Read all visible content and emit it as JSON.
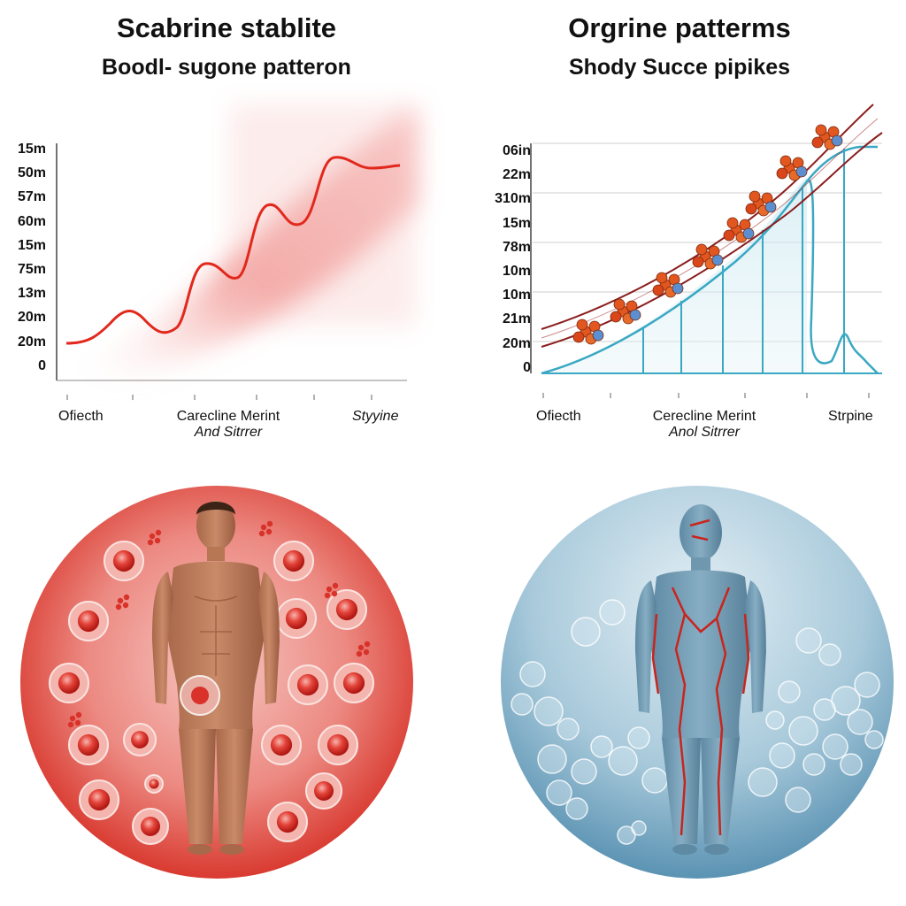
{
  "left_panel": {
    "title": "Scabrine stablite",
    "subtitle": "Boodl- sugone patteron",
    "y_ticks": [
      "15m",
      "50m",
      "57m",
      "60m",
      "15m",
      "75m",
      "13m",
      "20m",
      "20m",
      "0"
    ],
    "x_labels": {
      "left": "Ofiecth",
      "center_line1": "Carecline Merint",
      "center_line2": "And Sitrrer",
      "right": "Styyine"
    },
    "theme_color": "#e23b2f",
    "figure": "human body with red blood cells"
  },
  "right_panel": {
    "title": "Orgrine patterms",
    "subtitle": "Shody Succe pipikes",
    "y_ticks": [
      "06in",
      "22m",
      "310m",
      "15m",
      "78m",
      "10m",
      "10m",
      "21m",
      "20m",
      "0"
    ],
    "x_labels": {
      "left": "Ofiecth",
      "center_line1": "Cerecline Merint",
      "center_line2": "Anol Sitrrer",
      "right": "Strpine"
    },
    "theme_color": "#3aa8c3",
    "figure": "blue human body with glucose molecules"
  }
}
